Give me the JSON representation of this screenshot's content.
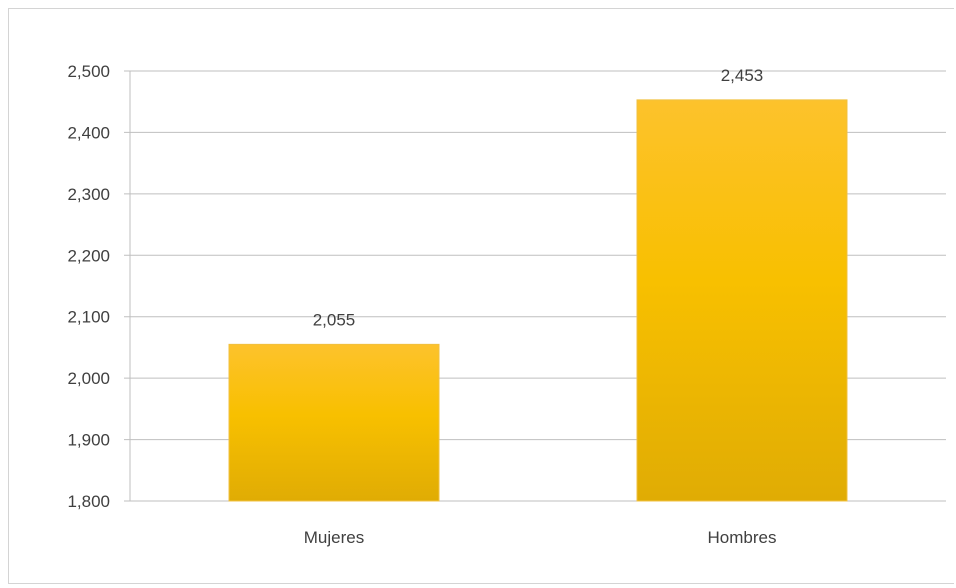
{
  "chart_data": {
    "type": "bar",
    "categories": [
      "Mujeres",
      "Hombres"
    ],
    "values": [
      2055,
      2453
    ],
    "data_labels": [
      "2,055",
      "2,453"
    ],
    "ylim": [
      1800,
      2500
    ],
    "yticks": [
      1800,
      1900,
      2000,
      2100,
      2200,
      2300,
      2400,
      2500
    ],
    "ytick_labels": [
      "1,800",
      "1,900",
      "2,000",
      "2,100",
      "2,200",
      "2,300",
      "2,400",
      "2,500"
    ],
    "grid": true,
    "legend": "none",
    "bar_colors": [
      "#fdc22c",
      "#f8c000",
      "#e0ac04"
    ]
  }
}
